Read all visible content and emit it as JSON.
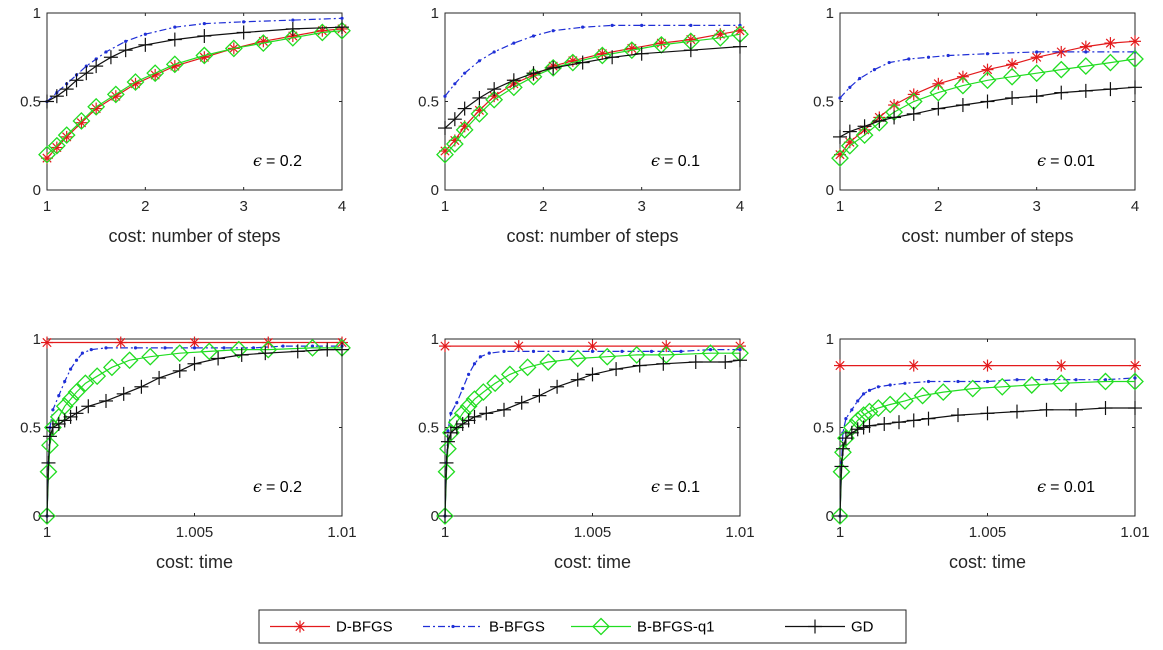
{
  "colors": {
    "D-BFGS": "#e31a1c",
    "B-BFGS": "#1f2fd6",
    "B-BFGS-q1": "#22dd22",
    "GD": "#111111"
  },
  "legend": {
    "placement": "bottom-center",
    "entries": [
      {
        "name": "D-BFGS",
        "style": "solid",
        "marker": "asterisk-icon"
      },
      {
        "name": "B-BFGS",
        "style": "dashdot",
        "marker": "dot-icon"
      },
      {
        "name": "B-BFGS-q1",
        "style": "solid",
        "marker": "diamond-icon"
      },
      {
        "name": "GD",
        "style": "solid",
        "marker": "plus-icon"
      }
    ]
  },
  "chart_data": [
    {
      "type": "line",
      "row": 0,
      "col": 0,
      "xlabel": "cost: number of steps",
      "annotation_symbol": "ϵ",
      "annotation_value": "= 0.2",
      "xlim": [
        1,
        4
      ],
      "ylim": [
        0,
        1
      ],
      "xticks": [
        1,
        2,
        3,
        4
      ],
      "xtick_labels": [
        "1",
        "2",
        "3",
        "4"
      ],
      "yticks": [
        0,
        0.5,
        1
      ],
      "ytick_labels": [
        "0",
        "0.5",
        "1"
      ],
      "series": [
        {
          "name": "D-BFGS",
          "x": [
            1,
            1.1,
            1.2,
            1.35,
            1.5,
            1.7,
            1.9,
            2.1,
            2.3,
            2.6,
            2.9,
            3.2,
            3.5,
            3.8,
            4
          ],
          "y": [
            0.18,
            0.24,
            0.3,
            0.38,
            0.46,
            0.53,
            0.6,
            0.65,
            0.7,
            0.75,
            0.8,
            0.84,
            0.87,
            0.9,
            0.91
          ]
        },
        {
          "name": "B-BFGS",
          "x": [
            1,
            1.1,
            1.2,
            1.3,
            1.4,
            1.5,
            1.6,
            1.8,
            2.0,
            2.3,
            2.6,
            3.0,
            3.5,
            4
          ],
          "y": [
            0.5,
            0.55,
            0.6,
            0.65,
            0.7,
            0.74,
            0.78,
            0.84,
            0.88,
            0.92,
            0.94,
            0.95,
            0.96,
            0.97
          ]
        },
        {
          "name": "B-BFGS-q1",
          "x": [
            1,
            1.1,
            1.2,
            1.35,
            1.5,
            1.7,
            1.9,
            2.1,
            2.3,
            2.6,
            2.9,
            3.2,
            3.5,
            3.8,
            4
          ],
          "y": [
            0.2,
            0.25,
            0.31,
            0.39,
            0.47,
            0.54,
            0.61,
            0.66,
            0.71,
            0.76,
            0.8,
            0.83,
            0.86,
            0.89,
            0.9
          ]
        },
        {
          "name": "GD",
          "x": [
            1,
            1.1,
            1.2,
            1.3,
            1.4,
            1.5,
            1.65,
            1.8,
            2.0,
            2.3,
            2.6,
            3.0,
            3.5,
            4
          ],
          "y": [
            0.5,
            0.53,
            0.57,
            0.62,
            0.66,
            0.7,
            0.75,
            0.79,
            0.82,
            0.85,
            0.87,
            0.89,
            0.91,
            0.92
          ]
        }
      ]
    },
    {
      "type": "line",
      "row": 0,
      "col": 1,
      "xlabel": "cost: number of steps",
      "annotation_symbol": "ϵ",
      "annotation_value": "= 0.1",
      "xlim": [
        1,
        4
      ],
      "ylim": [
        0,
        1
      ],
      "xticks": [
        1,
        2,
        3,
        4
      ],
      "xtick_labels": [
        "1",
        "2",
        "3",
        "4"
      ],
      "yticks": [
        0,
        0.5,
        1
      ],
      "ytick_labels": [
        "0",
        "0.5",
        "1"
      ],
      "series": [
        {
          "name": "D-BFGS",
          "x": [
            1,
            1.1,
            1.2,
            1.35,
            1.5,
            1.7,
            1.9,
            2.1,
            2.3,
            2.6,
            2.9,
            3.2,
            3.5,
            3.8,
            4
          ],
          "y": [
            0.22,
            0.28,
            0.36,
            0.45,
            0.53,
            0.6,
            0.65,
            0.7,
            0.73,
            0.77,
            0.8,
            0.83,
            0.85,
            0.88,
            0.9
          ]
        },
        {
          "name": "B-BFGS",
          "x": [
            1,
            1.1,
            1.2,
            1.35,
            1.5,
            1.7,
            1.9,
            2.1,
            2.4,
            2.7,
            3.0,
            3.5,
            4
          ],
          "y": [
            0.53,
            0.6,
            0.66,
            0.73,
            0.78,
            0.83,
            0.87,
            0.9,
            0.92,
            0.93,
            0.93,
            0.93,
            0.93
          ]
        },
        {
          "name": "B-BFGS-q1",
          "x": [
            1,
            1.1,
            1.2,
            1.35,
            1.5,
            1.7,
            1.9,
            2.1,
            2.3,
            2.6,
            2.9,
            3.2,
            3.5,
            3.8,
            4
          ],
          "y": [
            0.2,
            0.26,
            0.34,
            0.43,
            0.51,
            0.58,
            0.64,
            0.69,
            0.72,
            0.76,
            0.79,
            0.82,
            0.84,
            0.86,
            0.88
          ]
        },
        {
          "name": "GD",
          "x": [
            1,
            1.1,
            1.2,
            1.35,
            1.5,
            1.7,
            1.9,
            2.1,
            2.4,
            2.7,
            3.0,
            3.5,
            4
          ],
          "y": [
            0.35,
            0.4,
            0.46,
            0.52,
            0.57,
            0.62,
            0.66,
            0.69,
            0.72,
            0.75,
            0.77,
            0.79,
            0.81
          ]
        }
      ]
    },
    {
      "type": "line",
      "row": 0,
      "col": 2,
      "xlabel": "cost: number of steps",
      "annotation_symbol": "ϵ",
      "annotation_value": "= 0.01",
      "xlim": [
        1,
        4
      ],
      "ylim": [
        0,
        1
      ],
      "xticks": [
        1,
        2,
        3,
        4
      ],
      "xtick_labels": [
        "1",
        "2",
        "3",
        "4"
      ],
      "yticks": [
        0,
        0.5,
        1
      ],
      "ytick_labels": [
        "0",
        "0.5",
        "1"
      ],
      "series": [
        {
          "name": "D-BFGS",
          "x": [
            1,
            1.1,
            1.25,
            1.4,
            1.55,
            1.75,
            2.0,
            2.25,
            2.5,
            2.75,
            3.0,
            3.25,
            3.5,
            3.75,
            4
          ],
          "y": [
            0.2,
            0.27,
            0.34,
            0.41,
            0.48,
            0.54,
            0.6,
            0.64,
            0.68,
            0.71,
            0.75,
            0.78,
            0.81,
            0.83,
            0.84
          ]
        },
        {
          "name": "B-BFGS",
          "x": [
            1,
            1.1,
            1.2,
            1.35,
            1.5,
            1.7,
            1.9,
            2.1,
            2.5,
            3.0,
            3.5,
            4
          ],
          "y": [
            0.52,
            0.58,
            0.63,
            0.68,
            0.72,
            0.74,
            0.75,
            0.76,
            0.77,
            0.78,
            0.78,
            0.78
          ]
        },
        {
          "name": "B-BFGS-q1",
          "x": [
            1,
            1.1,
            1.25,
            1.4,
            1.55,
            1.75,
            2.0,
            2.25,
            2.5,
            2.75,
            3.0,
            3.25,
            3.5,
            3.75,
            4
          ],
          "y": [
            0.18,
            0.25,
            0.31,
            0.38,
            0.44,
            0.5,
            0.55,
            0.59,
            0.62,
            0.64,
            0.66,
            0.68,
            0.7,
            0.72,
            0.74
          ]
        },
        {
          "name": "GD",
          "x": [
            1,
            1.1,
            1.25,
            1.4,
            1.55,
            1.75,
            2.0,
            2.25,
            2.5,
            2.75,
            3.0,
            3.25,
            3.5,
            3.75,
            4
          ],
          "y": [
            0.3,
            0.33,
            0.36,
            0.39,
            0.41,
            0.43,
            0.46,
            0.48,
            0.5,
            0.52,
            0.53,
            0.55,
            0.56,
            0.57,
            0.58
          ]
        }
      ]
    },
    {
      "type": "line",
      "row": 1,
      "col": 0,
      "xlabel": "cost: time",
      "annotation_symbol": "ϵ",
      "annotation_value": "= 0.2",
      "xlim": [
        1,
        1.01
      ],
      "ylim": [
        0,
        1
      ],
      "xticks": [
        1,
        1.005,
        1.01
      ],
      "xtick_labels": [
        "1",
        "1.005",
        "1.01"
      ],
      "yticks": [
        0,
        0.5,
        1
      ],
      "ytick_labels": [
        "0",
        "0.5",
        "1"
      ],
      "series": [
        {
          "name": "D-BFGS",
          "x": [
            1,
            1.0025,
            1.005,
            1.0075,
            1.01
          ],
          "y": [
            0.98,
            0.98,
            0.98,
            0.98,
            0.98
          ]
        },
        {
          "name": "B-BFGS",
          "x": [
            1,
            1.00005,
            1.0001,
            1.0002,
            1.0004,
            1.0006,
            1.0008,
            1.001,
            1.0012,
            1.0015,
            1.002,
            1.003,
            1.004,
            1.005,
            1.006,
            1.007,
            1.008,
            1.009,
            1.01
          ],
          "y": [
            0,
            0.3,
            0.5,
            0.6,
            0.68,
            0.76,
            0.83,
            0.88,
            0.92,
            0.94,
            0.95,
            0.95,
            0.95,
            0.95,
            0.95,
            0.95,
            0.96,
            0.96,
            0.96
          ]
        },
        {
          "name": "B-BFGS-q1",
          "x": [
            1,
            1.00005,
            1.0001,
            1.0002,
            1.0004,
            1.0006,
            1.0008,
            1.001,
            1.0013,
            1.0017,
            1.0022,
            1.0028,
            1.0035,
            1.0045,
            1.0055,
            1.0065,
            1.0075,
            1.009,
            1.01
          ],
          "y": [
            0,
            0.25,
            0.4,
            0.5,
            0.56,
            0.62,
            0.66,
            0.7,
            0.75,
            0.79,
            0.84,
            0.88,
            0.9,
            0.92,
            0.93,
            0.94,
            0.94,
            0.95,
            0.95
          ]
        },
        {
          "name": "GD",
          "x": [
            1,
            1.00005,
            1.0001,
            1.0002,
            1.0004,
            1.0006,
            1.0008,
            1.001,
            1.0014,
            1.002,
            1.0026,
            1.0032,
            1.0038,
            1.0045,
            1.005,
            1.0058,
            1.0066,
            1.0074,
            1.0085,
            1.0095,
            1.01
          ],
          "y": [
            0,
            0.3,
            0.45,
            0.5,
            0.52,
            0.54,
            0.56,
            0.58,
            0.62,
            0.65,
            0.69,
            0.73,
            0.78,
            0.82,
            0.86,
            0.89,
            0.91,
            0.92,
            0.93,
            0.94,
            0.94
          ]
        }
      ]
    },
    {
      "type": "line",
      "row": 1,
      "col": 1,
      "xlabel": "cost: time",
      "annotation_symbol": "ϵ",
      "annotation_value": "= 0.1",
      "xlim": [
        1,
        1.01
      ],
      "ylim": [
        0,
        1
      ],
      "xticks": [
        1,
        1.005,
        1.01
      ],
      "xtick_labels": [
        "1",
        "1.005",
        "1.01"
      ],
      "yticks": [
        0,
        0.5,
        1
      ],
      "ytick_labels": [
        "0",
        "0.5",
        "1"
      ],
      "series": [
        {
          "name": "D-BFGS",
          "x": [
            1,
            1.0025,
            1.005,
            1.0075,
            1.01
          ],
          "y": [
            0.96,
            0.96,
            0.96,
            0.96,
            0.96
          ]
        },
        {
          "name": "B-BFGS",
          "x": [
            1,
            1.00005,
            1.0001,
            1.0002,
            1.0004,
            1.0006,
            1.0008,
            1.001,
            1.0012,
            1.0015,
            1.002,
            1.003,
            1.004,
            1.005,
            1.006,
            1.007,
            1.008,
            1.009,
            1.01
          ],
          "y": [
            0,
            0.3,
            0.48,
            0.58,
            0.64,
            0.72,
            0.8,
            0.86,
            0.9,
            0.92,
            0.93,
            0.93,
            0.93,
            0.93,
            0.93,
            0.93,
            0.93,
            0.94,
            0.94
          ]
        },
        {
          "name": "B-BFGS-q1",
          "x": [
            1,
            1.00005,
            1.0001,
            1.0002,
            1.0004,
            1.0006,
            1.0008,
            1.001,
            1.0013,
            1.0017,
            1.0022,
            1.0028,
            1.0035,
            1.0045,
            1.0055,
            1.0065,
            1.0075,
            1.009,
            1.01
          ],
          "y": [
            0,
            0.25,
            0.38,
            0.47,
            0.53,
            0.58,
            0.62,
            0.66,
            0.7,
            0.75,
            0.8,
            0.84,
            0.87,
            0.89,
            0.9,
            0.91,
            0.91,
            0.92,
            0.92
          ]
        },
        {
          "name": "GD",
          "x": [
            1,
            1.00005,
            1.0001,
            1.0002,
            1.0004,
            1.0006,
            1.0008,
            1.001,
            1.0014,
            1.002,
            1.0026,
            1.0032,
            1.0038,
            1.0045,
            1.005,
            1.0058,
            1.0066,
            1.0074,
            1.0085,
            1.0095,
            1.01
          ],
          "y": [
            0,
            0.3,
            0.42,
            0.47,
            0.5,
            0.52,
            0.54,
            0.56,
            0.58,
            0.6,
            0.64,
            0.68,
            0.73,
            0.77,
            0.8,
            0.83,
            0.85,
            0.86,
            0.87,
            0.87,
            0.88
          ]
        }
      ]
    },
    {
      "type": "line",
      "row": 1,
      "col": 2,
      "xlabel": "cost: time",
      "annotation_symbol": "ϵ",
      "annotation_value": "= 0.01",
      "xlim": [
        1,
        1.01
      ],
      "ylim": [
        0,
        1
      ],
      "xticks": [
        1,
        1.005,
        1.01
      ],
      "xtick_labels": [
        "1",
        "1.005",
        "1.01"
      ],
      "yticks": [
        0,
        0.5,
        1
      ],
      "ytick_labels": [
        "0",
        "0.5",
        "1"
      ],
      "series": [
        {
          "name": "D-BFGS",
          "x": [
            1,
            1.0025,
            1.005,
            1.0075,
            1.01
          ],
          "y": [
            0.85,
            0.85,
            0.85,
            0.85,
            0.85
          ]
        },
        {
          "name": "B-BFGS",
          "x": [
            1,
            1.00005,
            1.0001,
            1.0002,
            1.0004,
            1.0006,
            1.0008,
            1.001,
            1.0013,
            1.0017,
            1.0022,
            1.003,
            1.004,
            1.005,
            1.006,
            1.007,
            1.008,
            1.009,
            1.01
          ],
          "y": [
            0,
            0.3,
            0.47,
            0.55,
            0.6,
            0.65,
            0.69,
            0.71,
            0.73,
            0.74,
            0.75,
            0.76,
            0.76,
            0.76,
            0.77,
            0.77,
            0.77,
            0.77,
            0.78
          ]
        },
        {
          "name": "B-BFGS-q1",
          "x": [
            1,
            1.00005,
            1.0001,
            1.0002,
            1.0004,
            1.0006,
            1.0008,
            1.001,
            1.0013,
            1.0017,
            1.0022,
            1.0028,
            1.0035,
            1.0045,
            1.0055,
            1.0065,
            1.0075,
            1.009,
            1.01
          ],
          "y": [
            0,
            0.25,
            0.36,
            0.44,
            0.5,
            0.54,
            0.57,
            0.59,
            0.61,
            0.63,
            0.65,
            0.68,
            0.7,
            0.72,
            0.73,
            0.74,
            0.75,
            0.76,
            0.76
          ]
        },
        {
          "name": "GD",
          "x": [
            1,
            1.00005,
            1.0001,
            1.0002,
            1.0004,
            1.0006,
            1.0008,
            1.001,
            1.0015,
            1.002,
            1.0025,
            1.003,
            1.004,
            1.005,
            1.006,
            1.007,
            1.008,
            1.009,
            1.01
          ],
          "y": [
            0,
            0.28,
            0.38,
            0.44,
            0.47,
            0.49,
            0.5,
            0.51,
            0.52,
            0.53,
            0.54,
            0.55,
            0.57,
            0.58,
            0.59,
            0.6,
            0.6,
            0.61,
            0.61
          ]
        }
      ]
    }
  ]
}
